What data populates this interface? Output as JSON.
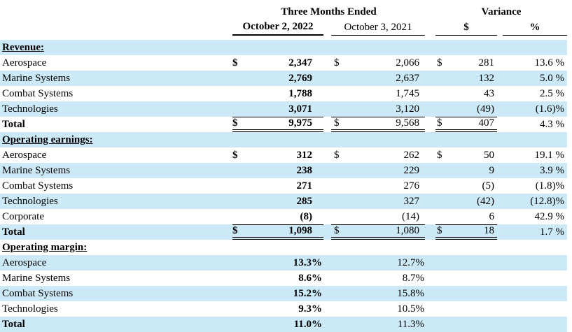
{
  "colors": {
    "stripe_blue": "#cce9f7",
    "text": "#000000",
    "background": "#ffffff",
    "rule": "#000000"
  },
  "table": {
    "header": {
      "three_months_ended": "Three Months Ended",
      "variance": "Variance",
      "col_2022": "October 2, 2022",
      "col_2021": "October 3, 2021",
      "col_var_dollar": "$",
      "col_var_pct": "%"
    },
    "sections": [
      {
        "title": "Revenue:",
        "rows": [
          {
            "label": "Aerospace",
            "d1": "$",
            "v1": "2,347",
            "d2": "$",
            "v2": "2,066",
            "d3": "$",
            "v3": "281",
            "v4": "13.6 %"
          },
          {
            "label": "Marine Systems",
            "v1": "2,769",
            "v2": "2,637",
            "v3": "132",
            "v4": "5.0 %"
          },
          {
            "label": "Combat Systems",
            "v1": "1,788",
            "v2": "1,745",
            "v3": "43",
            "v4": "2.5 %"
          },
          {
            "label": "Technologies",
            "v1": "3,071",
            "v2": "3,120",
            "v3": "(49)",
            "v4": "(1.6)%"
          }
        ],
        "total": {
          "label": "Total",
          "d1": "$",
          "v1": "9,975",
          "d2": "$",
          "v2": "9,568",
          "d3": "$",
          "v3": "407",
          "v4": "4.3 %"
        }
      },
      {
        "title": "Operating earnings:",
        "rows": [
          {
            "label": "Aerospace",
            "d1": "$",
            "v1": "312",
            "d2": "$",
            "v2": "262",
            "d3": "$",
            "v3": "50",
            "v4": "19.1 %"
          },
          {
            "label": "Marine Systems",
            "v1": "238",
            "v2": "229",
            "v3": "9",
            "v4": "3.9 %"
          },
          {
            "label": "Combat Systems",
            "v1": "271",
            "v2": "276",
            "v3": "(5)",
            "v4": "(1.8)%"
          },
          {
            "label": "Technologies",
            "v1": "285",
            "v2": "327",
            "v3": "(42)",
            "v4": "(12.8)%"
          },
          {
            "label": "Corporate",
            "v1": "(8)",
            "v2": "(14)",
            "v3": "6",
            "v4": "42.9 %"
          }
        ],
        "total": {
          "label": "Total",
          "d1": "$",
          "v1": "1,098",
          "d2": "$",
          "v2": "1,080",
          "d3": "$",
          "v3": "18",
          "v4": "1.7 %"
        }
      },
      {
        "title": "Operating margin:",
        "rows": [
          {
            "label": "Aerospace",
            "v1": "13.3%",
            "v2": "12.7%"
          },
          {
            "label": "Marine Systems",
            "v1": "8.6%",
            "v2": "8.7%"
          },
          {
            "label": "Combat Systems",
            "v1": "15.2%",
            "v2": "15.8%"
          },
          {
            "label": "Technologies",
            "v1": "9.3%",
            "v2": "10.5%"
          }
        ],
        "total": {
          "label": "Total",
          "v1": "11.0%",
          "v2": "11.3%"
        }
      }
    ]
  }
}
